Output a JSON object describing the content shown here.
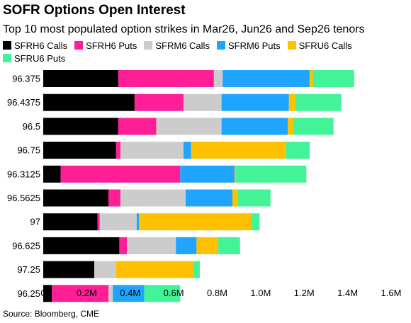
{
  "chart_data": {
    "type": "bar",
    "orientation": "horizontal",
    "stacked": true,
    "title": "SOFR Options Open Interest",
    "subtitle": "Top 10 most populated option strikes in Mar26, Jun26 and Sep26 tenors",
    "source": "Source: Bloomberg, CME",
    "legend_position": "top-left",
    "grid": false,
    "xlim": [
      0,
      1600000
    ],
    "x_ticks": [
      0,
      200000,
      400000,
      600000,
      800000,
      1000000,
      1200000,
      1400000,
      1600000
    ],
    "x_tick_labels": [
      "0",
      "0.2M",
      "0.4M",
      "0.6M",
      "0.8M",
      "1.0M",
      "1.2M",
      "1.4M",
      "1.6M"
    ],
    "categories": [
      "96.375",
      "96.4375",
      "96.5",
      "96.75",
      "96.3125",
      "96.5625",
      "97",
      "96.625",
      "97.25",
      "96.25"
    ],
    "series": [
      {
        "name": "SFRH6 Calls",
        "color": "#000000",
        "values": [
          345000,
          420000,
          345000,
          335000,
          80000,
          300000,
          250000,
          350000,
          235000,
          40000
        ]
      },
      {
        "name": "SFRH6 Puts",
        "color": "#ff1e96",
        "values": [
          440000,
          225000,
          175000,
          20000,
          550000,
          55000,
          10000,
          35000,
          0,
          260000
        ]
      },
      {
        "name": "SFRM6 Calls",
        "color": "#cccccc",
        "values": [
          40000,
          175000,
          300000,
          290000,
          0,
          300000,
          170000,
          225000,
          100000,
          20000
        ]
      },
      {
        "name": "SFRM6 Puts",
        "color": "#1fa5ff",
        "values": [
          400000,
          310000,
          305000,
          35000,
          250000,
          215000,
          10000,
          95000,
          0,
          145000
        ]
      },
      {
        "name": "SFRU6 Calls",
        "color": "#ffc000",
        "values": [
          15000,
          30000,
          25000,
          435000,
          5000,
          25000,
          515000,
          100000,
          355000,
          0
        ]
      },
      {
        "name": "SFRU6 Puts",
        "color": "#43f398",
        "values": [
          190000,
          210000,
          185000,
          110000,
          325000,
          150000,
          40000,
          100000,
          30000,
          165000
        ]
      }
    ]
  }
}
